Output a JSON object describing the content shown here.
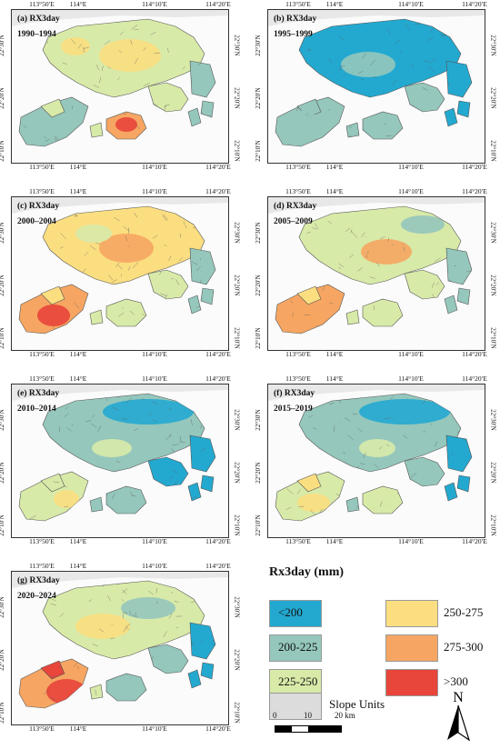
{
  "colors": {
    "lt200": "#23a9d0",
    "c200_225": "#95c7bc",
    "c225_250": "#d8eaa8",
    "c250_275": "#fbde80",
    "c275_300": "#f6a662",
    "gt300": "#e8453b",
    "slope": "#dcdcdc",
    "border": "#555555"
  },
  "axes": {
    "lon": [
      "113°50′E",
      "114°E",
      "114°10′E",
      "114°20′E"
    ],
    "lat": [
      "22°30′N",
      "22°20′N",
      "22°10′N"
    ]
  },
  "panels": [
    {
      "title": "(a) RX3day",
      "years": "1990–1994",
      "scheme": "a"
    },
    {
      "title": "(b) RX3day",
      "years": "1995–1999",
      "scheme": "b"
    },
    {
      "title": "(c) RX3day",
      "years": "2000–2004",
      "scheme": "c"
    },
    {
      "title": "(d) RX3day",
      "years": "2005–2009",
      "scheme": "d"
    },
    {
      "title": "(e) RX3day",
      "years": "2010–2014",
      "scheme": "e"
    },
    {
      "title": "(f) RX3day",
      "years": "2015–2019",
      "scheme": "f"
    },
    {
      "title": "(g) RX3day",
      "years": "2020–2024",
      "scheme": "g"
    }
  ],
  "legend": {
    "title": "Rx3day (mm)",
    "items": [
      {
        "label": "<200",
        "color": "#23a9d0"
      },
      {
        "label": "200-225",
        "color": "#95c7bc"
      },
      {
        "label": "225-250",
        "color": "#d8eaa8"
      },
      {
        "label": "250-275",
        "color": "#fbde80"
      },
      {
        "label": "275-300",
        "color": "#f6a662"
      },
      {
        "label": ">300",
        "color": "#e8453b"
      },
      {
        "label": "Slope Units",
        "color": "#dcdcdc"
      }
    ]
  },
  "scalebar": {
    "labels": [
      "0",
      "10",
      "20 km"
    ]
  },
  "north": {
    "label": "N",
    "icon": "north-arrow-icon"
  }
}
